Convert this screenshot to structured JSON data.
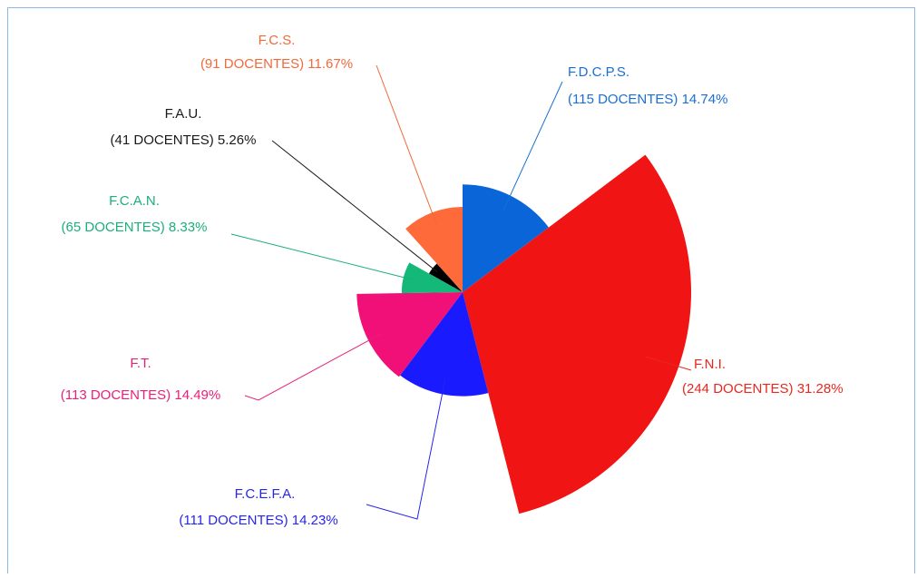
{
  "chart_data": {
    "type": "pie",
    "categories": [
      "F.D.C.P.S.",
      "F.N.I.",
      "F.C.E.F.A.",
      "F.T.",
      "F.C.A.N.",
      "F.A.U.",
      "F.C.S."
    ],
    "values": [
      115,
      244,
      111,
      113,
      65,
      41,
      91
    ],
    "value_labels": [
      "(115 DOCENTES) 14.74%",
      "(244 DOCENTES) 31.28%",
      "(111 DOCENTES) 14.23%",
      "(113 DOCENTES) 14.49%",
      "(65 DOCENTES) 8.33%",
      "(41 DOCENTES) 5.26%",
      "(91 DOCENTES) 11.67%"
    ],
    "colors": [
      "#0a66d8",
      "#f01414",
      "#1a1aff",
      "#f01078",
      "#14b878",
      "#000000",
      "#ff6a3a"
    ],
    "label_colors": [
      "#1a6fd0",
      "#e8281e",
      "#2626e8",
      "#e8207a",
      "#1ab07a",
      "#1a1a1a",
      "#f06a3a"
    ]
  }
}
